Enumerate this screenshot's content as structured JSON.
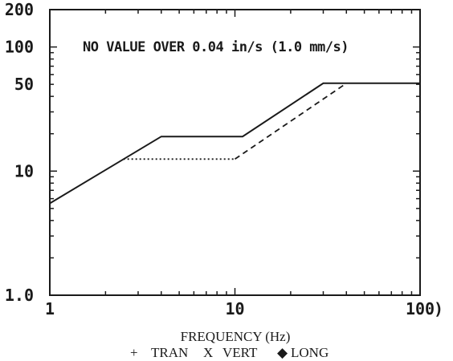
{
  "chart_data": {
    "type": "line",
    "title": "",
    "annotation": "NO VALUE OVER 0.04 in/s (1.0 mm/s)",
    "xlabel": "FREQUENCY (Hz)",
    "ylabel": "",
    "x_scale": "log",
    "y_scale": "log",
    "xlim": [
      1,
      100
    ],
    "ylim": [
      1,
      200
    ],
    "x_ticks": [
      "1",
      "10",
      "100"
    ],
    "x_axis_end_marker": ")",
    "y_ticks": [
      "1.0",
      "10",
      "50",
      "100",
      "200"
    ],
    "grid": false,
    "legend_text": {
      "tran": "TRAN",
      "vert": "VERT",
      "long": "LONG",
      "tran_symbol": "+",
      "vert_symbol": "X",
      "long_symbol": "◆"
    },
    "series": [
      {
        "style": "solid",
        "x": [
          1,
          4,
          11,
          30,
          100
        ],
        "y": [
          5.5,
          19,
          19,
          51,
          51
        ]
      },
      {
        "style": "dotted",
        "x": [
          2.5,
          10
        ],
        "y": [
          12.5,
          12.5
        ]
      },
      {
        "style": "dashed",
        "x": [
          10,
          40
        ],
        "y": [
          12.5,
          51
        ]
      }
    ]
  }
}
